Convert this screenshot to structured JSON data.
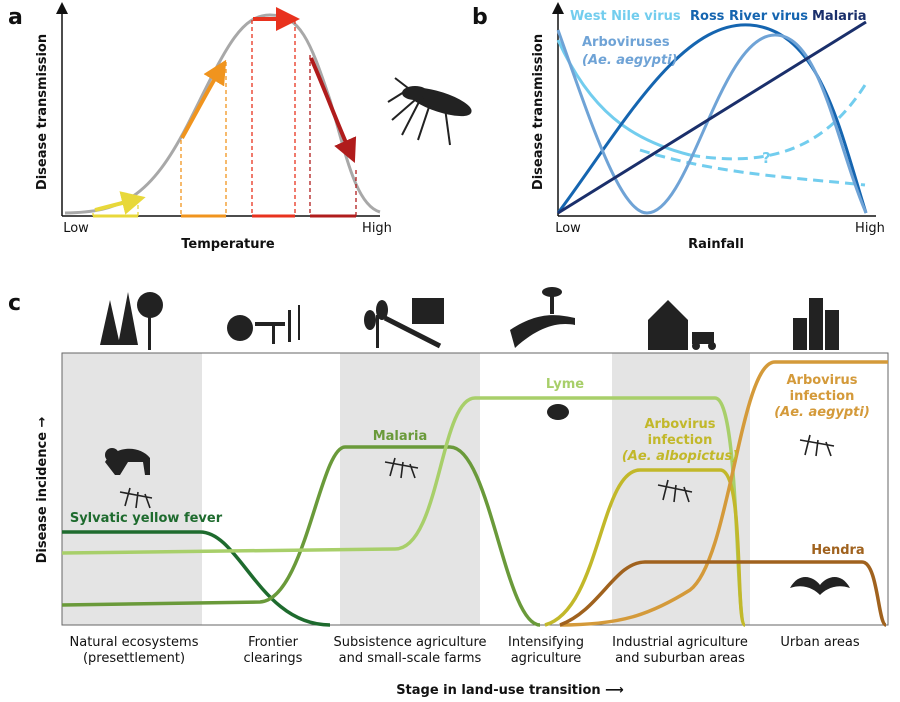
{
  "panels": {
    "a": {
      "label": "a",
      "y_label": "Disease transmission",
      "x_label": "Temperature",
      "x_low": "Low",
      "x_high": "High"
    },
    "b": {
      "label": "b",
      "y_label": "Disease transmission",
      "x_label": "Rainfall",
      "x_low": "Low",
      "x_high": "High",
      "series": [
        "West Nile virus",
        "Ross River virus",
        "Malaria"
      ],
      "arbo_lines": [
        "Arboviruses",
        "(Ae. aegypti)"
      ],
      "question": "?"
    },
    "c": {
      "label": "c",
      "y_label": "Disease incidence →",
      "x_label": "Stage in land-use transition ⟶",
      "stages": [
        [
          "Natural ecosystems",
          "(presettlement)"
        ],
        [
          "Frontier",
          "clearings"
        ],
        [
          "Subsistence agriculture",
          "and small-scale farms"
        ],
        [
          "Intensifying",
          "agriculture"
        ],
        [
          "Industrial agriculture",
          "and suburban areas"
        ],
        [
          "Urban areas"
        ]
      ],
      "curves": {
        "yellow_fever": "Sylvatic yellow fever",
        "malaria": "Malaria",
        "lyme": "Lyme",
        "albopictus": [
          "Arbovirus",
          "infection",
          "(Ae. albopictus)"
        ],
        "aegypti": [
          "Arbovirus",
          "infection",
          "(Ae. aegypti)"
        ],
        "hendra": "Hendra"
      }
    }
  }
}
